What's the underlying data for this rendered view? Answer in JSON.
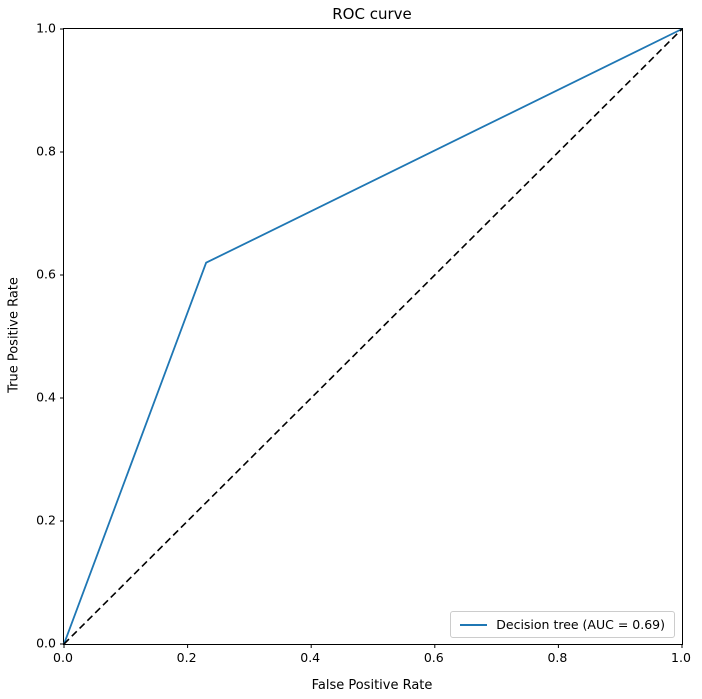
{
  "chart_data": {
    "type": "line",
    "title": "ROC curve",
    "xlabel": "False Positive Rate",
    "ylabel": "True Positive Rate",
    "xlim": [
      0.0,
      1.0
    ],
    "ylim": [
      0.0,
      1.0
    ],
    "xticks": [
      0.0,
      0.2,
      0.4,
      0.6,
      0.8,
      1.0
    ],
    "yticks": [
      0.0,
      0.2,
      0.4,
      0.6,
      0.8,
      1.0
    ],
    "tick_decimals": 1,
    "grid": false,
    "background": "#ffffff",
    "series": [
      {
        "name": "Decision tree (AUC = 0.69)",
        "color": "#1f77b4",
        "line_style": "solid",
        "line_width": 1.8,
        "x": [
          0.0,
          0.23,
          1.0
        ],
        "y": [
          0.0,
          0.62,
          1.0
        ],
        "in_legend": true
      },
      {
        "name": "chance-level-diagonal",
        "color": "#000000",
        "line_style": "dashed",
        "line_width": 1.6,
        "x": [
          0.0,
          1.0
        ],
        "y": [
          0.0,
          1.0
        ],
        "in_legend": false
      }
    ],
    "legend": {
      "position": "lower right",
      "entries": [
        {
          "label": "Decision tree (AUC = 0.69)",
          "color": "#1f77b4",
          "line_style": "solid"
        }
      ]
    }
  }
}
